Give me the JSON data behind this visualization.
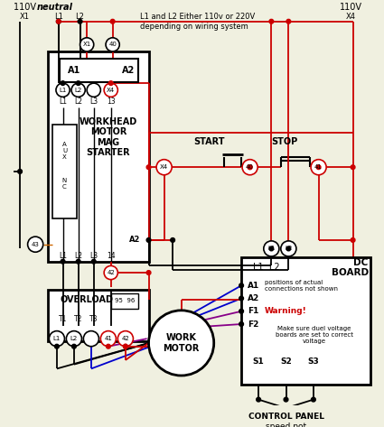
{
  "bg_color": "#f0f0e0",
  "RED": "#cc0000",
  "BLACK": "#000000",
  "BLUE": "#0000cc",
  "PURPLE": "#880088",
  "ORANGE": "#cc6600",
  "note_text": "L1 and L2 Either 110v or 220V\ndepending on wiring system",
  "positions_text": "positions of actual\nconnections not shown",
  "warning_text": "Warning!",
  "warning_detail": "Make sure duel voltage\nboards are set to correct\nvoltage"
}
